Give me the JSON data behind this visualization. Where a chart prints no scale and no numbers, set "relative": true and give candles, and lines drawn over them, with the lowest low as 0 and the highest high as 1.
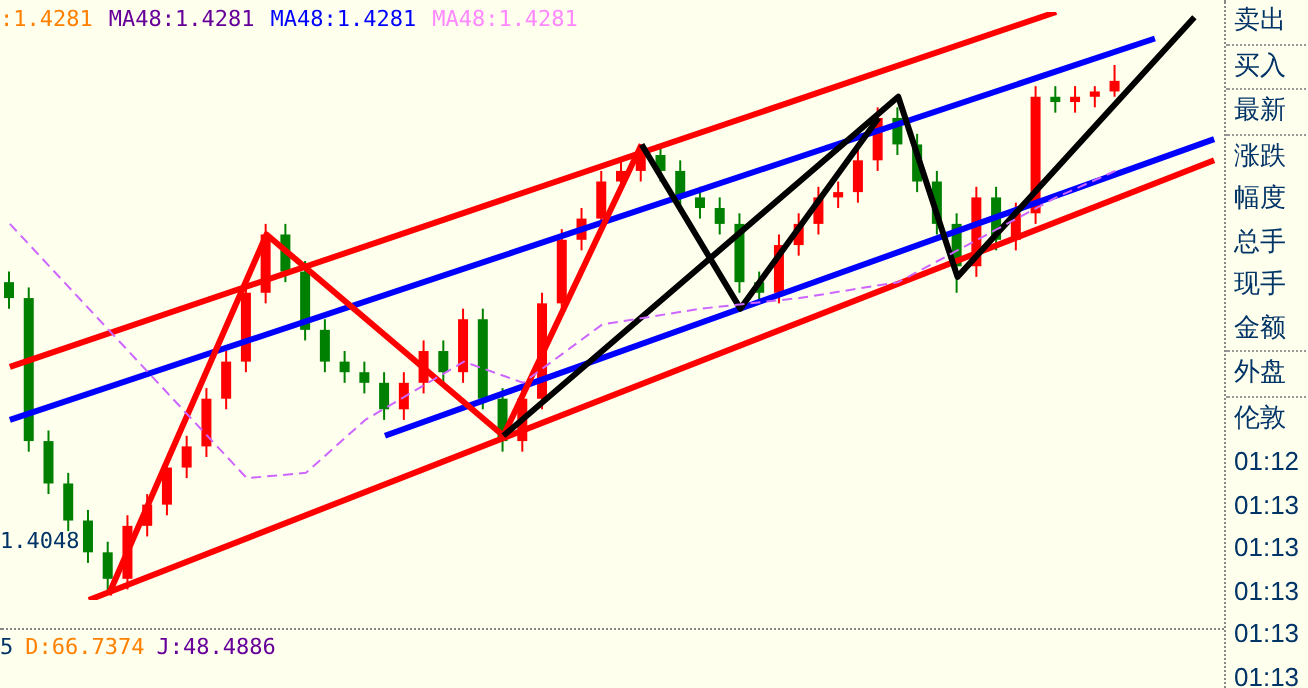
{
  "chart_data": {
    "type": "candlestick",
    "relative": true,
    "categories": [
      null,
      null,
      null,
      null,
      null,
      null,
      null,
      null,
      null,
      null,
      null,
      null,
      null,
      null,
      null,
      null,
      null,
      null,
      null,
      null,
      null,
      null,
      null,
      null,
      null,
      null,
      null,
      null,
      null,
      null,
      null,
      null,
      null,
      null,
      null,
      null,
      null,
      null,
      null,
      null,
      null,
      null,
      null,
      null,
      null,
      null,
      null,
      null,
      null,
      null,
      null,
      null,
      null,
      null,
      null,
      null,
      null,
      null,
      null,
      null,
      null,
      null
    ],
    "ohlc": [
      [
        0.59,
        0.61,
        0.54,
        0.56
      ],
      [
        0.56,
        0.58,
        0.27,
        0.29
      ],
      [
        0.29,
        0.31,
        0.19,
        0.21
      ],
      [
        0.21,
        0.23,
        0.12,
        0.14
      ],
      [
        0.14,
        0.16,
        0.06,
        0.08
      ],
      [
        0.08,
        0.1,
        0,
        0.03
      ],
      [
        0.03,
        0.15,
        0.01,
        0.13
      ],
      [
        0.13,
        0.19,
        0.11,
        0.17
      ],
      [
        0.17,
        0.26,
        0.15,
        0.24
      ],
      [
        0.24,
        0.3,
        0.22,
        0.28
      ],
      [
        0.28,
        0.39,
        0.26,
        0.37
      ],
      [
        0.37,
        0.46,
        0.35,
        0.44
      ],
      [
        0.44,
        0.59,
        0.42,
        0.57
      ],
      [
        0.57,
        0.7,
        0.55,
        0.68
      ],
      [
        0.68,
        0.7,
        0.59,
        0.61
      ],
      [
        0.61,
        0.63,
        0.48,
        0.5
      ],
      [
        0.5,
        0.52,
        0.42,
        0.44
      ],
      [
        0.44,
        0.46,
        0.4,
        0.42
      ],
      [
        0.42,
        0.44,
        0.38,
        0.4
      ],
      [
        0.4,
        0.42,
        0.33,
        0.35
      ],
      [
        0.35,
        0.42,
        0.33,
        0.4
      ],
      [
        0.4,
        0.48,
        0.38,
        0.46
      ],
      [
        0.46,
        0.48,
        0.4,
        0.42
      ],
      [
        0.42,
        0.54,
        0.4,
        0.52
      ],
      [
        0.52,
        0.54,
        0.35,
        0.37
      ],
      [
        0.37,
        0.39,
        0.27,
        0.29
      ],
      [
        0.29,
        0.39,
        0.27,
        0.37
      ],
      [
        0.37,
        0.57,
        0.35,
        0.55
      ],
      [
        0.55,
        0.69,
        0.53,
        0.67
      ],
      [
        0.67,
        0.73,
        0.65,
        0.71
      ],
      [
        0.71,
        0.8,
        0.69,
        0.78
      ],
      [
        0.78,
        0.82,
        0.76,
        0.8
      ],
      [
        0.8,
        0.85,
        0.78,
        0.83
      ],
      [
        0.83,
        0.85,
        0.78,
        0.8
      ],
      [
        0.8,
        0.82,
        0.73,
        0.75
      ],
      [
        0.75,
        0.77,
        0.71,
        0.73
      ],
      [
        0.73,
        0.75,
        0.68,
        0.7
      ],
      [
        0.7,
        0.72,
        0.57,
        0.59
      ],
      [
        0.59,
        0.61,
        0.55,
        0.57
      ],
      [
        0.57,
        0.68,
        0.55,
        0.66
      ],
      [
        0.66,
        0.72,
        0.64,
        0.7
      ],
      [
        0.7,
        0.77,
        0.68,
        0.75
      ],
      [
        0.75,
        0.78,
        0.73,
        0.76
      ],
      [
        0.76,
        0.84,
        0.74,
        0.82
      ],
      [
        0.82,
        0.92,
        0.8,
        0.9
      ],
      [
        0.9,
        0.92,
        0.83,
        0.85
      ],
      [
        0.85,
        0.87,
        0.76,
        0.78
      ],
      [
        0.78,
        0.8,
        0.68,
        0.7
      ],
      [
        0.7,
        0.72,
        0.57,
        0.62
      ],
      [
        0.62,
        0.77,
        0.6,
        0.75
      ],
      [
        0.75,
        0.77,
        0.65,
        0.67
      ],
      [
        0.67,
        0.74,
        0.65,
        0.72
      ],
      [
        0.72,
        0.96,
        0.7,
        0.94
      ],
      [
        0.94,
        0.96,
        0.91,
        0.93
      ],
      [
        0.93,
        0.96,
        0.91,
        0.94
      ],
      [
        0.94,
        0.96,
        0.92,
        0.95
      ],
      [
        0.95,
        1,
        0.94,
        0.97
      ],
      null,
      null,
      null,
      null,
      null
    ],
    "colors": [
      "#008000",
      "#008000",
      "#008000",
      "#008000",
      "#008000",
      "#008000",
      "#ff0000",
      "#ff0000",
      "#ff0000",
      "#ff0000",
      "#ff0000",
      "#ff0000",
      "#ff0000",
      "#ff0000",
      "#008000",
      "#008000",
      "#008000",
      "#008000",
      "#008000",
      "#008000",
      "#ff0000",
      "#ff0000",
      "#008000",
      "#ff0000",
      "#008000",
      "#008000",
      "#ff0000",
      "#ff0000",
      "#ff0000",
      "#ff0000",
      "#ff0000",
      "#ff0000",
      "#ff0000",
      "#008000",
      "#008000",
      "#008000",
      "#008000",
      "#008000",
      "#008000",
      "#ff0000",
      "#ff0000",
      "#ff0000",
      "#ff0000",
      "#ff0000",
      "#ff0000",
      "#008000",
      "#008000",
      "#008000",
      "#008000",
      "#ff0000",
      "#008000",
      "#ff0000",
      "#ff0000",
      "#008000",
      "#ff0000",
      "#ff0000",
      "#ff0000",
      null,
      null,
      null,
      null,
      null
    ],
    "series": [
      {
        "type": "line",
        "color": "#ff0000",
        "values": [
          0.43,
          null,
          null,
          null,
          null,
          null,
          null,
          null,
          null,
          null,
          null,
          null,
          null,
          null,
          null,
          null,
          null,
          null,
          null,
          null,
          null,
          null,
          null,
          null,
          null,
          null,
          null,
          null,
          null,
          null,
          null,
          null,
          null,
          null,
          null,
          null,
          null,
          null,
          null,
          null,
          null,
          null,
          null,
          null,
          null,
          null,
          null,
          null,
          null,
          null,
          null,
          null,
          null,
          1.1,
          null,
          null,
          null,
          null,
          null,
          null,
          null,
          null
        ]
      },
      {
        "type": "line",
        "color": "#ff0000",
        "values": [
          null,
          null,
          null,
          null,
          -0.01,
          null,
          null,
          null,
          null,
          null,
          null,
          null,
          null,
          null,
          null,
          null,
          null,
          null,
          null,
          null,
          null,
          null,
          null,
          null,
          null,
          null,
          null,
          null,
          null,
          null,
          null,
          null,
          null,
          null,
          null,
          null,
          null,
          null,
          null,
          null,
          null,
          null,
          null,
          null,
          null,
          null,
          null,
          null,
          null,
          null,
          null,
          null,
          null,
          null,
          null,
          null,
          null,
          null,
          null,
          null,
          null,
          0.82
        ]
      },
      {
        "type": "line",
        "color": "#0000ff",
        "values": [
          0.33,
          null,
          null,
          null,
          null,
          null,
          null,
          null,
          null,
          null,
          null,
          null,
          null,
          null,
          null,
          null,
          null,
          null,
          null,
          null,
          null,
          null,
          null,
          null,
          null,
          null,
          null,
          null,
          null,
          null,
          null,
          null,
          null,
          null,
          null,
          null,
          null,
          null,
          null,
          null,
          null,
          null,
          null,
          null,
          null,
          null,
          null,
          null,
          null,
          null,
          null,
          null,
          null,
          null,
          null,
          null,
          null,
          null,
          1.05,
          null,
          null,
          null
        ]
      },
      {
        "type": "line",
        "color": "#0000ff",
        "values": [
          null,
          null,
          null,
          null,
          null,
          null,
          null,
          null,
          null,
          null,
          null,
          null,
          null,
          null,
          null,
          null,
          null,
          null,
          null,
          0.3,
          null,
          null,
          null,
          null,
          null,
          null,
          null,
          null,
          null,
          null,
          null,
          null,
          null,
          null,
          null,
          null,
          null,
          null,
          null,
          null,
          null,
          null,
          null,
          null,
          null,
          null,
          null,
          null,
          null,
          null,
          null,
          null,
          null,
          null,
          null,
          null,
          null,
          null,
          null,
          null,
          null,
          0.86
        ]
      },
      {
        "type": "line",
        "color": "#ff0000",
        "values": [
          null,
          null,
          null,
          null,
          null,
          0,
          null,
          null,
          null,
          null,
          null,
          null,
          null,
          0.68,
          null,
          null,
          null,
          null,
          null,
          null,
          null,
          null,
          null,
          null,
          null,
          0.3,
          null,
          null,
          null,
          null,
          null,
          null,
          0.85,
          null,
          null,
          null,
          null,
          null,
          null,
          null,
          null,
          null,
          null,
          null,
          null,
          null,
          null,
          null,
          null,
          null,
          null,
          null,
          null,
          null,
          null,
          null,
          null,
          null,
          null,
          null,
          null,
          null
        ]
      },
      {
        "type": "line",
        "color": "#000000",
        "values": [
          null,
          null,
          null,
          null,
          null,
          null,
          null,
          null,
          null,
          null,
          null,
          null,
          null,
          null,
          null,
          null,
          null,
          null,
          null,
          null,
          null,
          null,
          null,
          null,
          null,
          0.3,
          null,
          null,
          null,
          null,
          null,
          null,
          null,
          null,
          null,
          null,
          null,
          null,
          null,
          null,
          null,
          null,
          null,
          null,
          null,
          0.94,
          null,
          null,
          0.6,
          null,
          null,
          null,
          null,
          null,
          null,
          null,
          null,
          null,
          null,
          null,
          1.09,
          null
        ]
      },
      {
        "type": "line",
        "color": "#000000",
        "values": [
          null,
          null,
          null,
          null,
          null,
          null,
          null,
          null,
          null,
          null,
          null,
          null,
          null,
          null,
          null,
          null,
          null,
          null,
          null,
          null,
          null,
          null,
          null,
          null,
          null,
          null,
          null,
          null,
          null,
          null,
          null,
          null,
          0.85,
          null,
          null,
          null,
          null,
          0.54,
          null,
          null,
          null,
          null,
          null,
          null,
          0.9,
          null,
          null,
          null,
          null,
          null,
          null,
          null,
          null,
          null,
          null,
          null,
          null,
          null,
          null,
          null,
          null,
          null
        ]
      },
      {
        "type": "line",
        "color": "#cc66ff",
        "line_style": "dashed",
        "values": [
          0.7,
          null,
          null,
          null,
          null,
          null,
          null,
          null,
          null,
          null,
          null,
          null,
          0.22,
          null,
          null,
          0.23,
          null,
          null,
          0.33,
          null,
          null,
          null,
          null,
          0.44,
          null,
          null,
          0.4,
          null,
          null,
          null,
          0.51,
          null,
          null,
          null,
          null,
          0.54,
          null,
          null,
          null,
          null,
          0.56,
          null,
          null,
          null,
          null,
          0.59,
          null,
          null,
          null,
          null,
          0.69,
          null,
          null,
          0.75,
          null,
          null,
          0.8,
          null,
          null,
          null,
          null,
          null
        ]
      }
    ],
    "annotations": [
      ":1.4281",
      "MA48:1.4281",
      "MA48:1.4281",
      "MA48:1.4281",
      "1.4048",
      "5",
      "D:66.7374",
      "J:48.4886",
      "卖出",
      "买入",
      "最新",
      "涨跌",
      "幅度",
      "总手",
      "现手",
      "金额",
      "外盘",
      "伦敦",
      "01:12",
      "01:13",
      "01:13",
      "01:13",
      "01:13",
      "01:13"
    ]
  }
}
